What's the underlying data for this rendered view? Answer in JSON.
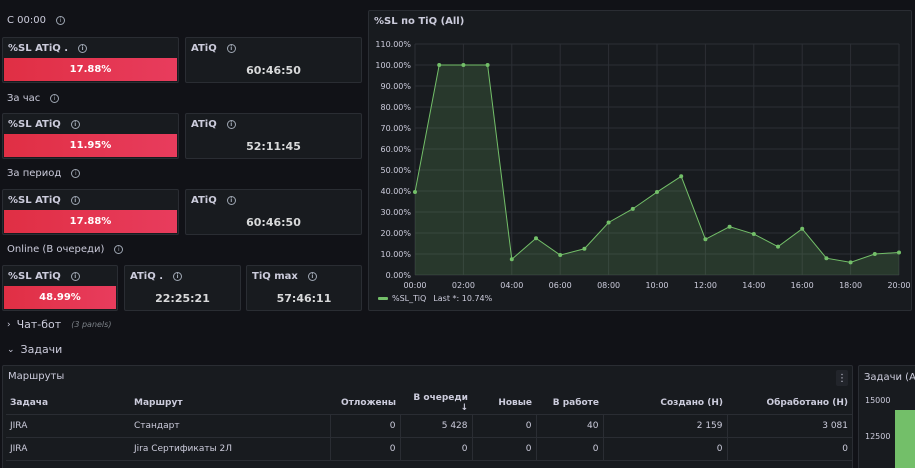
{
  "rows": {
    "since_midnight": "С 00:00",
    "per_hour": "За час",
    "per_period": "За период",
    "online": "Online (В очереди)"
  },
  "stats": {
    "r1_sl_title": "%SL ATiQ .",
    "r1_sl_value": "17.88%",
    "r1_atiq_title": "ATiQ",
    "r1_atiq_value": "60:46:50",
    "r2_sl_title": "%SL ATiQ",
    "r2_sl_value": "11.95%",
    "r2_atiq_title": "ATiQ",
    "r2_atiq_value": "52:11:45",
    "r3_sl_title": "%SL ATiQ",
    "r3_sl_value": "17.88%",
    "r3_atiq_title": "ATiQ",
    "r3_atiq_value": "60:46:50",
    "r4_sl_title": "%SL ATiQ",
    "r4_sl_value": "48.99%",
    "r4_atiq_title": "ATiQ .",
    "r4_atiq_value": "22:25:21",
    "r4_tiq_title": "TiQ max",
    "r4_tiq_value": "57:46:11"
  },
  "sections": {
    "chatbot_label": "Чат-бот",
    "chatbot_count": "(3 panels)",
    "tasks_label": "Задачи"
  },
  "chart_panel_title": "%SL по TiQ (All)",
  "legend": {
    "series": "%SL_TiQ",
    "last": "Last *: 10.74%"
  },
  "chart_data": {
    "type": "area",
    "title": "%SL по TiQ (All)",
    "x": [
      "00:00",
      "01:00",
      "02:00",
      "03:00",
      "04:00",
      "05:00",
      "06:00",
      "07:00",
      "08:00",
      "09:00",
      "10:00",
      "11:00",
      "12:00",
      "13:00",
      "14:00",
      "15:00",
      "16:00",
      "17:00",
      "18:00",
      "19:00",
      "20:00"
    ],
    "x_tick_labels": [
      "00:00",
      "02:00",
      "04:00",
      "06:00",
      "08:00",
      "10:00",
      "12:00",
      "14:00",
      "16:00",
      "18:00",
      "20:00"
    ],
    "series": [
      {
        "name": "%SL_TiQ",
        "color": "#73bf69",
        "values": [
          39.5,
          100,
          100,
          100,
          7.5,
          17.5,
          9.5,
          12.5,
          25,
          31.5,
          39.5,
          47,
          17,
          23,
          19.5,
          13.5,
          22,
          8,
          6,
          10,
          10.74
        ]
      }
    ],
    "ylim": [
      0,
      110
    ],
    "y_ticks": [
      "0.00%",
      "10.00%",
      "20.00%",
      "30.00%",
      "40.00%",
      "50.00%",
      "60.00%",
      "70.00%",
      "80.00%",
      "90.00%",
      "100.00%",
      "110.00%"
    ],
    "grid": true,
    "legend": "bottom-left"
  },
  "routes": {
    "title": "Маршруты",
    "menu_icon": "⋮",
    "columns": [
      "Задача",
      "Маршрут",
      "Отложены",
      "В очереди ↓",
      "Новые",
      "В работе",
      "Создано (Н)",
      "Обработано (Н)"
    ],
    "rows": [
      [
        "JIRA",
        "Стандарт",
        "0",
        "5 428",
        "0",
        "40",
        "2 159",
        "3 081"
      ],
      [
        "JIRA",
        "Jira Сертификаты 2Л",
        "0",
        "0",
        "0",
        "0",
        "0",
        "0"
      ]
    ]
  },
  "side_panel": {
    "title": "Задачи (All",
    "y_ticks": [
      "15000",
      "12500"
    ]
  }
}
